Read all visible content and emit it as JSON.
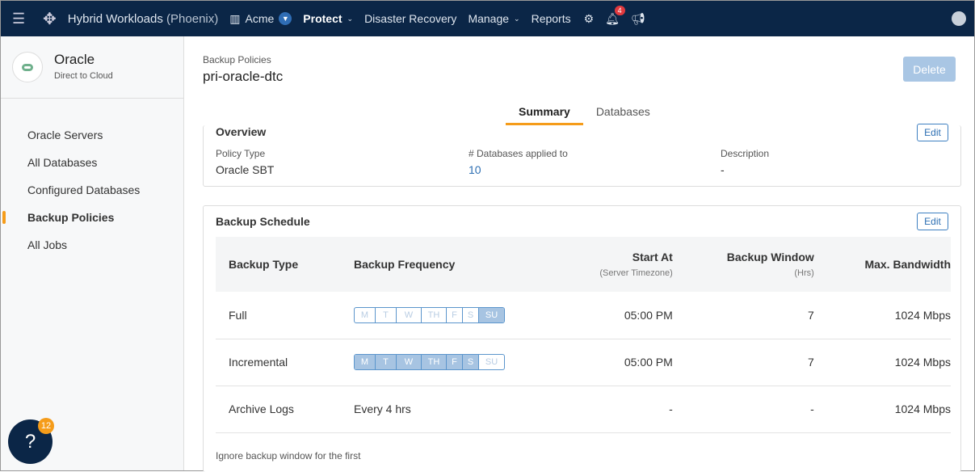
{
  "topbar": {
    "app": "Hybrid Workloads",
    "env": "(Phoenix)",
    "org": "Acme",
    "nav": [
      "Protect",
      "Disaster Recovery",
      "Manage",
      "Reports"
    ],
    "notifications": "4"
  },
  "sidebar": {
    "title": "Oracle",
    "subtitle": "Direct to Cloud",
    "items": [
      "Oracle Servers",
      "All Databases",
      "Configured Databases",
      "Backup Policies",
      "All Jobs"
    ],
    "active": "Backup Policies"
  },
  "main": {
    "breadcrumb": "Backup Policies",
    "title": "pri-oracle-dtc",
    "delete": "Delete",
    "tabs": [
      "Summary",
      "Databases"
    ],
    "overview": {
      "title": "Overview",
      "edit": "Edit",
      "policy_type_label": "Policy Type",
      "policy_type": "Oracle SBT",
      "db_label": "# Databases applied to",
      "db_count": "10",
      "desc_label": "Description",
      "desc": "-"
    },
    "schedule": {
      "title": "Backup Schedule",
      "edit": "Edit",
      "headers": {
        "type": "Backup Type",
        "freq": "Backup Frequency",
        "start": "Start At",
        "start_sub": "(Server Timezone)",
        "window": "Backup Window",
        "window_sub": "(Hrs)",
        "bw": "Max. Bandwidth"
      },
      "days": [
        "M",
        "T",
        "W",
        "TH",
        "F",
        "S",
        "SU"
      ],
      "rows": [
        {
          "type": "Full",
          "freq": "",
          "start": "05:00 PM",
          "window": "7",
          "bw": "1024 Mbps",
          "active_days": [
            "SU"
          ]
        },
        {
          "type": "Incremental",
          "freq": "",
          "start": "05:00 PM",
          "window": "7",
          "bw": "1024 Mbps",
          "active_days": [
            "M",
            "T",
            "W",
            "TH",
            "F",
            "S"
          ]
        },
        {
          "type": "Archive Logs",
          "freq": "Every 4 hrs",
          "start": "-",
          "window": "-",
          "bw": "1024 Mbps"
        }
      ],
      "footer": "Ignore backup window for the first"
    }
  },
  "help": {
    "badge": "12"
  }
}
